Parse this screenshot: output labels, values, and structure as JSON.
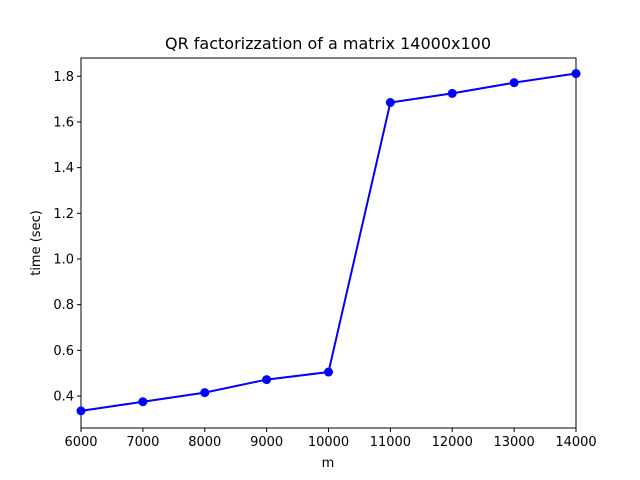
{
  "chart_data": {
    "type": "line",
    "title": "QR factorizzation of a matrix 14000x100",
    "xlabel": "m",
    "ylabel": "time (sec)",
    "xlim": [
      6000,
      14000
    ],
    "ylim": [
      0.26,
      1.88
    ],
    "xticks": [
      6000,
      7000,
      8000,
      9000,
      10000,
      11000,
      12000,
      13000,
      14000
    ],
    "yticks": [
      0.4,
      0.6,
      0.8,
      1.0,
      1.2,
      1.4,
      1.6,
      1.8
    ],
    "ytick_labels": [
      "0.4",
      "0.6",
      "0.8",
      "1.0",
      "1.2",
      "1.4",
      "1.6",
      "1.8"
    ],
    "grid": false,
    "series": [
      {
        "color": "#0000ff",
        "marker": "circle",
        "x": [
          6000,
          7000,
          8000,
          9000,
          10000,
          11000,
          12000,
          13000,
          14000
        ],
        "y": [
          0.335,
          0.375,
          0.415,
          0.472,
          0.505,
          1.685,
          1.725,
          1.772,
          1.812
        ]
      }
    ]
  }
}
